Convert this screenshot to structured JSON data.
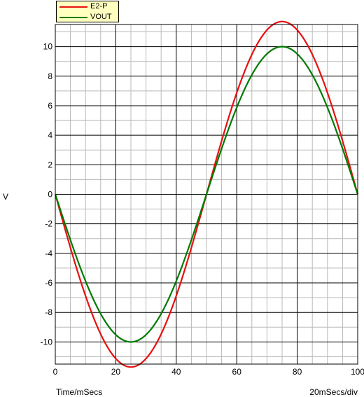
{
  "chart_data": {
    "type": "line",
    "xlabel": "Time/mSecs",
    "xscale_note": "20mSecs/div",
    "ylabel": "V",
    "xlim": [
      0,
      100
    ],
    "ylim": [
      -11.5,
      11.5
    ],
    "xticks": [
      0,
      20,
      40,
      60,
      80,
      100
    ],
    "yticks": [
      -10,
      -8,
      -6,
      -4,
      -2,
      0,
      2,
      4,
      6,
      8,
      10
    ],
    "grid": true,
    "legend_position": "top-left",
    "series": [
      {
        "name": "E2-P",
        "color": "#e81010",
        "amplitude": 11.7,
        "period_ms": 100,
        "x": [
          0,
          10,
          20,
          25,
          30,
          40,
          50,
          60,
          70,
          75,
          80,
          90,
          100
        ],
        "y": [
          0,
          -6.9,
          -11.1,
          -11.7,
          -11.1,
          -6.9,
          0,
          6.9,
          11.1,
          11.7,
          11.1,
          6.9,
          0
        ]
      },
      {
        "name": "VOUT",
        "color": "#007a00",
        "amplitude": 10.0,
        "period_ms": 100,
        "x": [
          0,
          10,
          20,
          25,
          30,
          40,
          50,
          60,
          70,
          75,
          80,
          90,
          100
        ],
        "y": [
          0,
          -5.9,
          -9.5,
          -10.0,
          -9.5,
          -5.9,
          0,
          5.9,
          9.5,
          10.0,
          9.5,
          5.9,
          0
        ]
      }
    ]
  }
}
